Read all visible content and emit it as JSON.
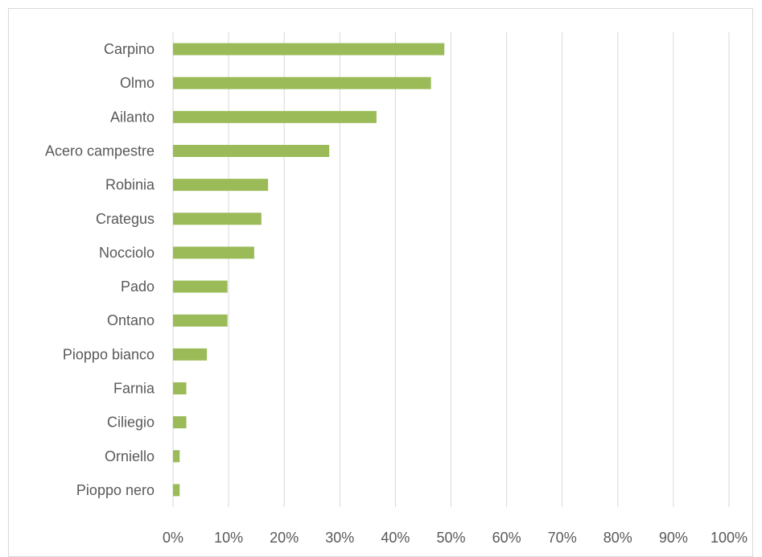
{
  "chart_data": {
    "type": "bar",
    "orientation": "horizontal",
    "title": "",
    "xlabel": "",
    "ylabel": "",
    "categories": [
      "Carpino",
      "Olmo",
      "Ailanto",
      "Acero campestre",
      "Robinia",
      "Crategus",
      "Nocciolo",
      "Pado",
      "Ontano",
      "Pioppo bianco",
      "Farnia",
      "Ciliegio",
      "Orniello",
      "Pioppo nero"
    ],
    "values": [
      48.8,
      46.4,
      36.6,
      28.1,
      17.1,
      15.9,
      14.6,
      9.8,
      9.8,
      6.1,
      2.4,
      2.4,
      1.2,
      1.2
    ],
    "xlim": [
      0,
      100
    ],
    "ticks": [
      "0%",
      "10%",
      "20%",
      "30%",
      "40%",
      "50%",
      "60%",
      "70%",
      "80%",
      "90%",
      "100%"
    ],
    "tick_values": [
      0,
      10,
      20,
      30,
      40,
      50,
      60,
      70,
      80,
      90,
      100
    ],
    "grid": true,
    "legend": "none",
    "bar_color": "#9bbb59"
  }
}
